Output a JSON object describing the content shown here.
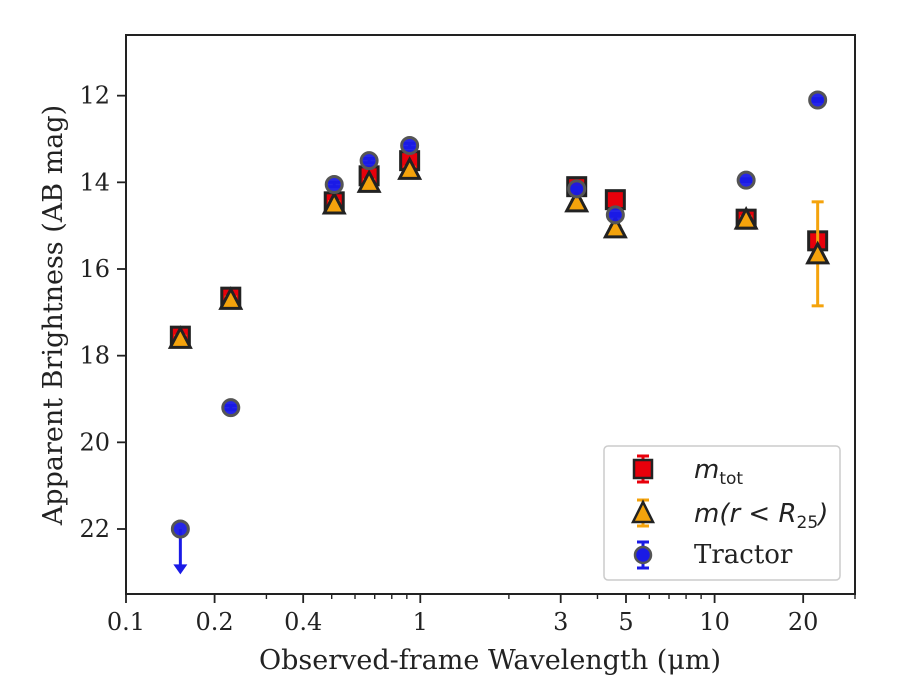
{
  "chart_data": {
    "type": "scatter",
    "xlabel": "Observed-frame Wavelength (μm)",
    "ylabel": "Apparent Brightness (AB mag)",
    "xscale": "log",
    "xlim": [
      0.1,
      30
    ],
    "ylim": [
      23.5,
      10.6
    ],
    "y_inverted": true,
    "grid": false,
    "legend_position": "lower-right",
    "x_ticks": [
      0.1,
      0.2,
      0.4,
      1,
      3,
      5,
      10,
      20
    ],
    "x_tick_labels": [
      "0.1",
      "0.2",
      "0.4",
      "1",
      "3",
      "5",
      "10",
      "20"
    ],
    "y_ticks": [
      12,
      14,
      16,
      18,
      20,
      22
    ],
    "y_tick_labels": [
      "12",
      "14",
      "16",
      "18",
      "20",
      "22"
    ],
    "series": [
      {
        "name": "m_tot",
        "legend_main": "m",
        "legend_sub": "tot",
        "marker": "square",
        "color": "#e8000b",
        "edge_color": "#222222",
        "errorbar_color": "#e8000b",
        "points": [
          {
            "x": 0.153,
            "y": 17.55,
            "err": 0.1
          },
          {
            "x": 0.227,
            "y": 16.65,
            "err": 0.1
          },
          {
            "x": 0.51,
            "y": 14.45,
            "err": 0.15
          },
          {
            "x": 0.67,
            "y": 13.85,
            "err": 0.12
          },
          {
            "x": 0.92,
            "y": 13.5,
            "err": 0.1
          },
          {
            "x": 3.4,
            "y": 14.1,
            "err": 0.05
          },
          {
            "x": 4.6,
            "y": 14.4,
            "err": 0.05
          },
          {
            "x": 12.8,
            "y": 14.85,
            "err": 0.05
          },
          {
            "x": 22.4,
            "y": 15.35,
            "err": 0.05
          }
        ]
      },
      {
        "name": "m(r<R_25)",
        "legend_main": "m(r < R",
        "legend_sub": "25",
        "legend_tail": ")",
        "marker": "triangle",
        "color": "#f4a30c",
        "edge_color": "#222222",
        "errorbar_color": "#f4a30c",
        "points": [
          {
            "x": 0.153,
            "y": 17.6,
            "err": 0.05
          },
          {
            "x": 0.227,
            "y": 16.7,
            "err": 0.05
          },
          {
            "x": 0.51,
            "y": 14.5,
            "err": 0.05
          },
          {
            "x": 0.67,
            "y": 14.0,
            "err": 0.05
          },
          {
            "x": 0.92,
            "y": 13.7,
            "err": 0.05
          },
          {
            "x": 3.4,
            "y": 14.45,
            "err": 0.03
          },
          {
            "x": 4.6,
            "y": 15.05,
            "err": 0.03
          },
          {
            "x": 12.8,
            "y": 14.85,
            "err": 0.05
          },
          {
            "x": 22.4,
            "y": 15.65,
            "err": 1.2
          }
        ]
      },
      {
        "name": "Tractor",
        "marker": "circle",
        "color": "#1a1ae6",
        "edge_color": "#555555",
        "errorbar_color": "#1a1ae6",
        "points": [
          {
            "x": 0.153,
            "y": 22.0,
            "err": 0.0,
            "upper_limit": true
          },
          {
            "x": 0.227,
            "y": 19.2,
            "err": 0.05
          },
          {
            "x": 0.51,
            "y": 14.05,
            "err": 0.05
          },
          {
            "x": 0.67,
            "y": 13.5,
            "err": 0.05
          },
          {
            "x": 0.92,
            "y": 13.15,
            "err": 0.05
          },
          {
            "x": 3.4,
            "y": 14.15,
            "err": 0.03
          },
          {
            "x": 4.6,
            "y": 14.75,
            "err": 0.03
          },
          {
            "x": 12.8,
            "y": 13.95,
            "err": 0.03
          },
          {
            "x": 22.4,
            "y": 12.1,
            "err": 0.03
          }
        ]
      }
    ]
  }
}
